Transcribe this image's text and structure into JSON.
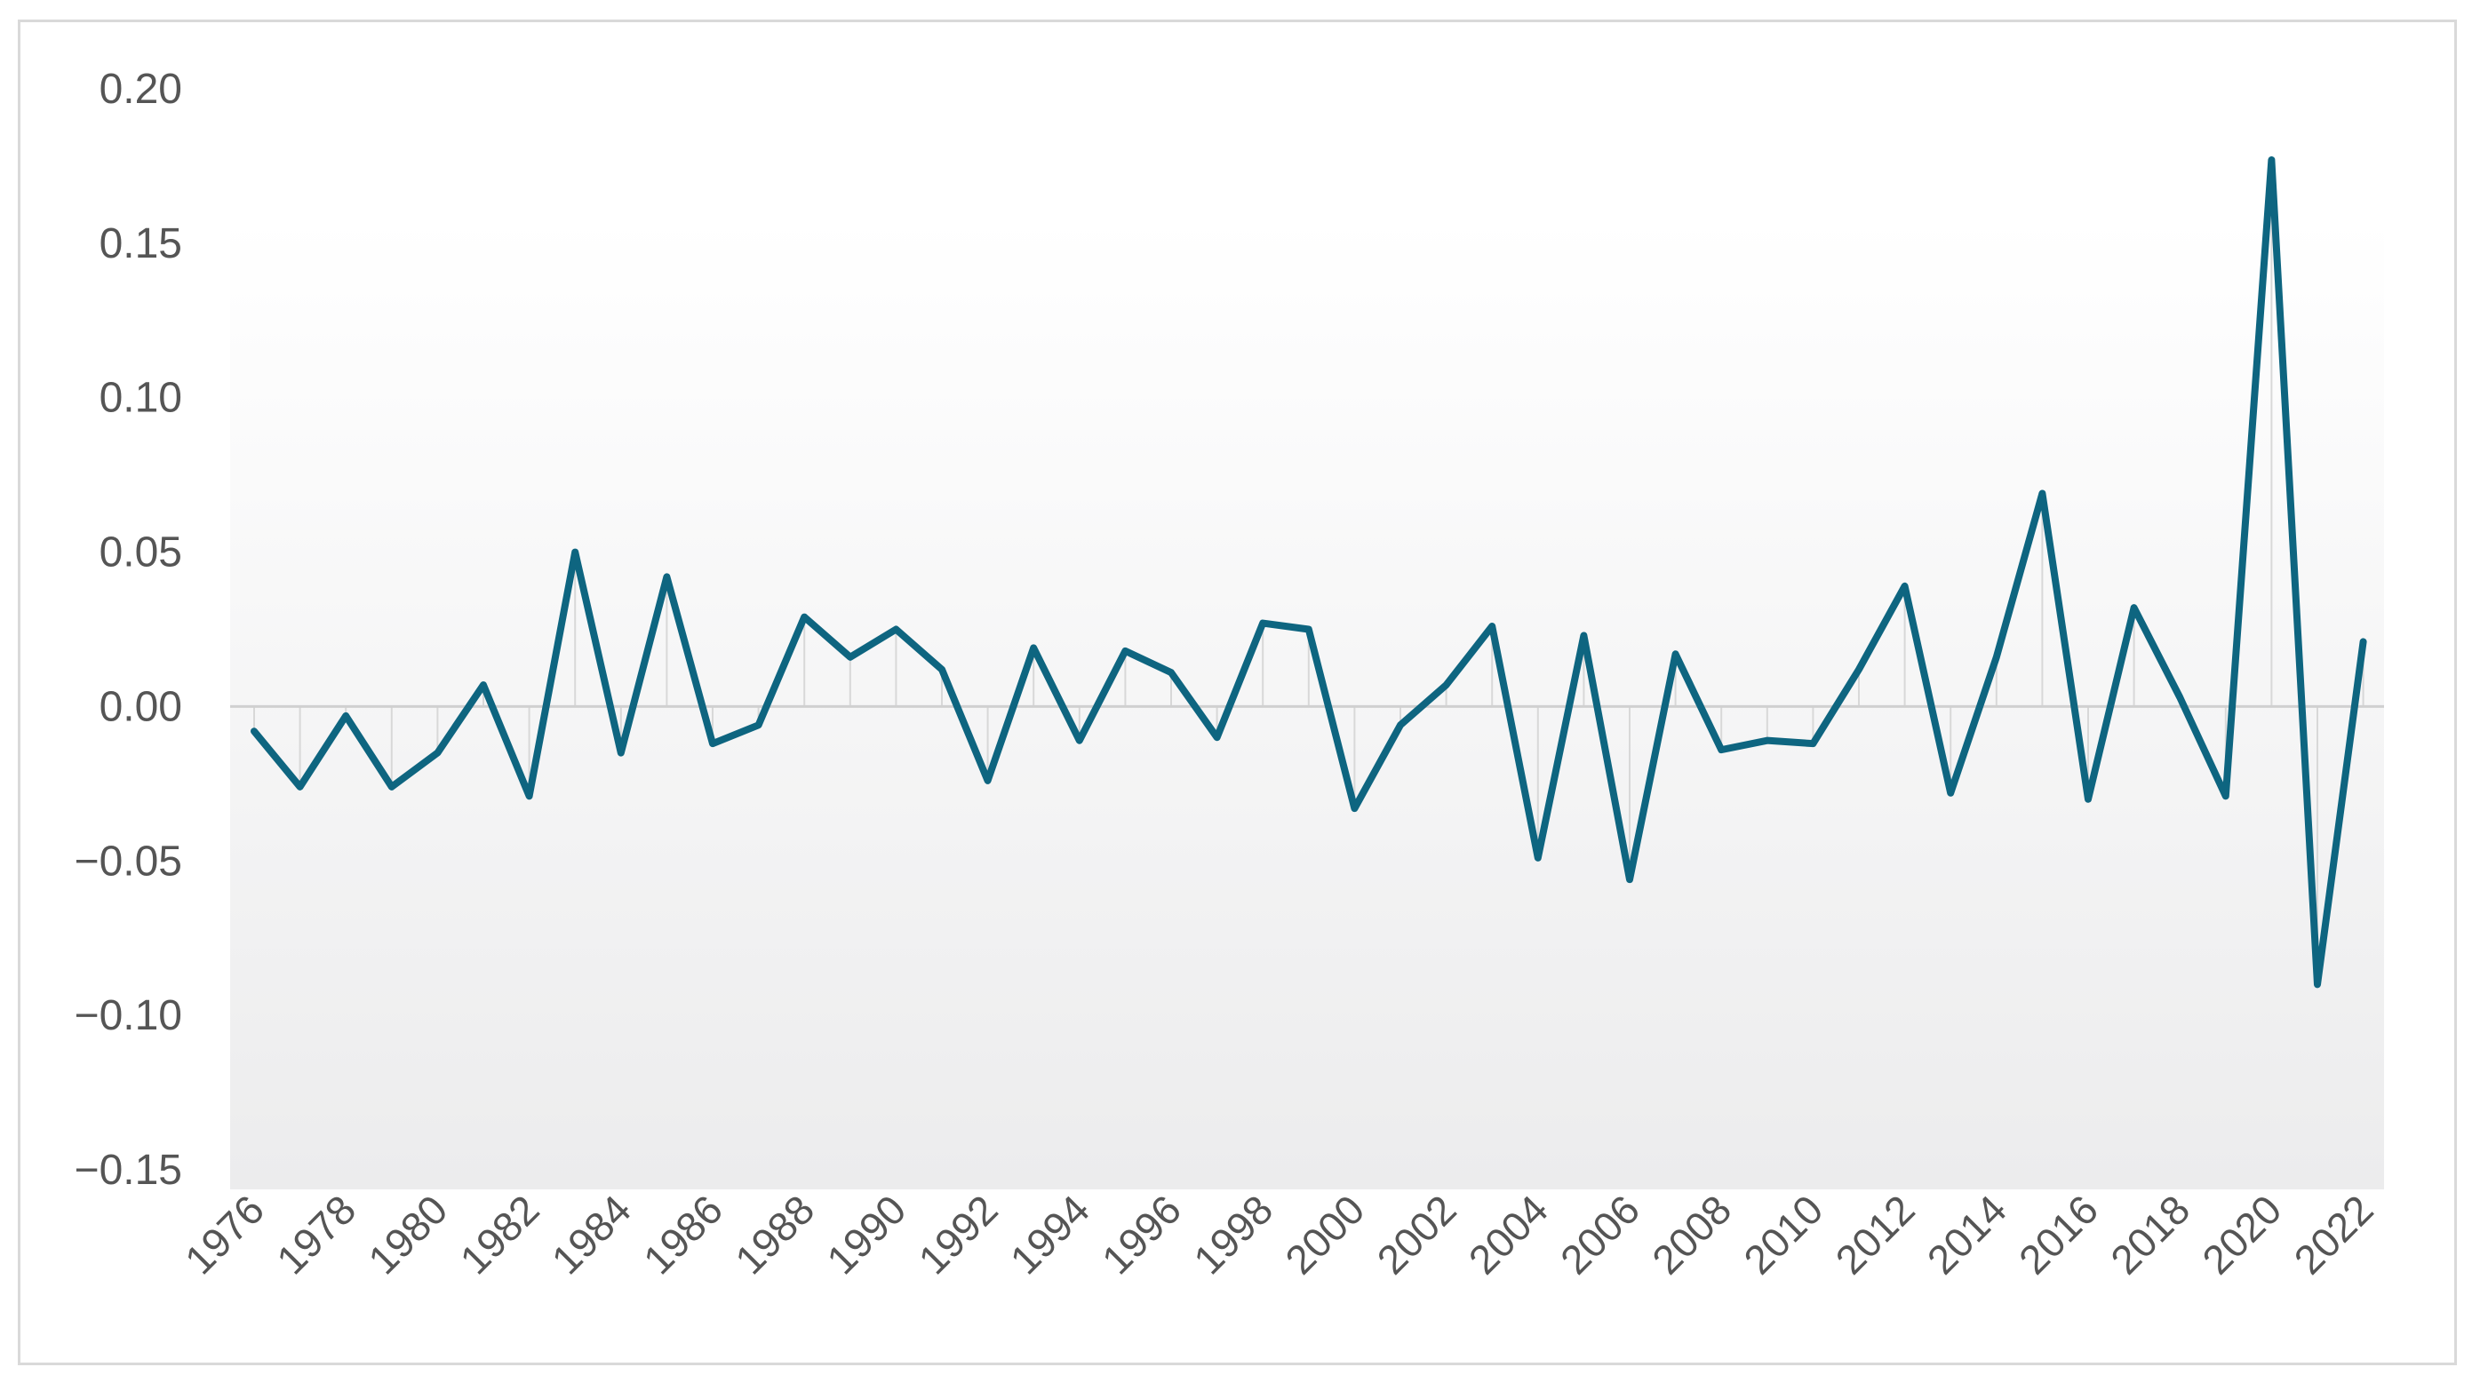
{
  "chart_data": {
    "type": "line",
    "title": "",
    "xlabel": "",
    "ylabel": "",
    "x": [
      1976,
      1977,
      1978,
      1979,
      1980,
      1981,
      1982,
      1983,
      1984,
      1985,
      1986,
      1987,
      1988,
      1989,
      1990,
      1991,
      1992,
      1993,
      1994,
      1995,
      1996,
      1997,
      1998,
      1999,
      2000,
      2001,
      2002,
      2003,
      2004,
      2005,
      2006,
      2007,
      2008,
      2009,
      2010,
      2011,
      2012,
      2013,
      2014,
      2015,
      2016,
      2017,
      2018,
      2019,
      2020,
      2021,
      2022
    ],
    "x_tick_labels": [
      "1976",
      "1978",
      "1980",
      "1982",
      "1984",
      "1986",
      "1988",
      "1990",
      "1992",
      "1994",
      "1996",
      "1998",
      "2000",
      "2002",
      "2004",
      "2006",
      "2008",
      "2010",
      "2012",
      "2014",
      "2016",
      "2018",
      "2020",
      "2022"
    ],
    "y_tick_labels": [
      "0.20",
      "0.15",
      "0.10",
      "0.05",
      "0.00",
      "−0.05",
      "−0.10",
      "−0.15"
    ],
    "y_ticks": [
      0.2,
      0.15,
      0.1,
      0.05,
      0.0,
      -0.05,
      -0.1,
      -0.15
    ],
    "ylim": [
      -0.15,
      0.2
    ],
    "grid": false,
    "series": [
      {
        "color": "#0e6580",
        "values": [
          -0.008,
          -0.026,
          -0.003,
          -0.026,
          -0.015,
          0.007,
          -0.029,
          0.05,
          -0.015,
          0.042,
          -0.012,
          -0.006,
          0.029,
          0.016,
          0.025,
          0.012,
          -0.024,
          0.019,
          -0.011,
          0.018,
          0.011,
          -0.01,
          0.027,
          0.025,
          -0.033,
          -0.006,
          0.007,
          0.026,
          -0.049,
          0.023,
          -0.056,
          0.017,
          -0.014,
          -0.011,
          -0.012,
          0.012,
          0.039,
          -0.028,
          0.016,
          0.069,
          -0.03,
          0.032,
          0.003,
          -0.029,
          0.177,
          -0.09,
          0.021
        ]
      }
    ]
  }
}
